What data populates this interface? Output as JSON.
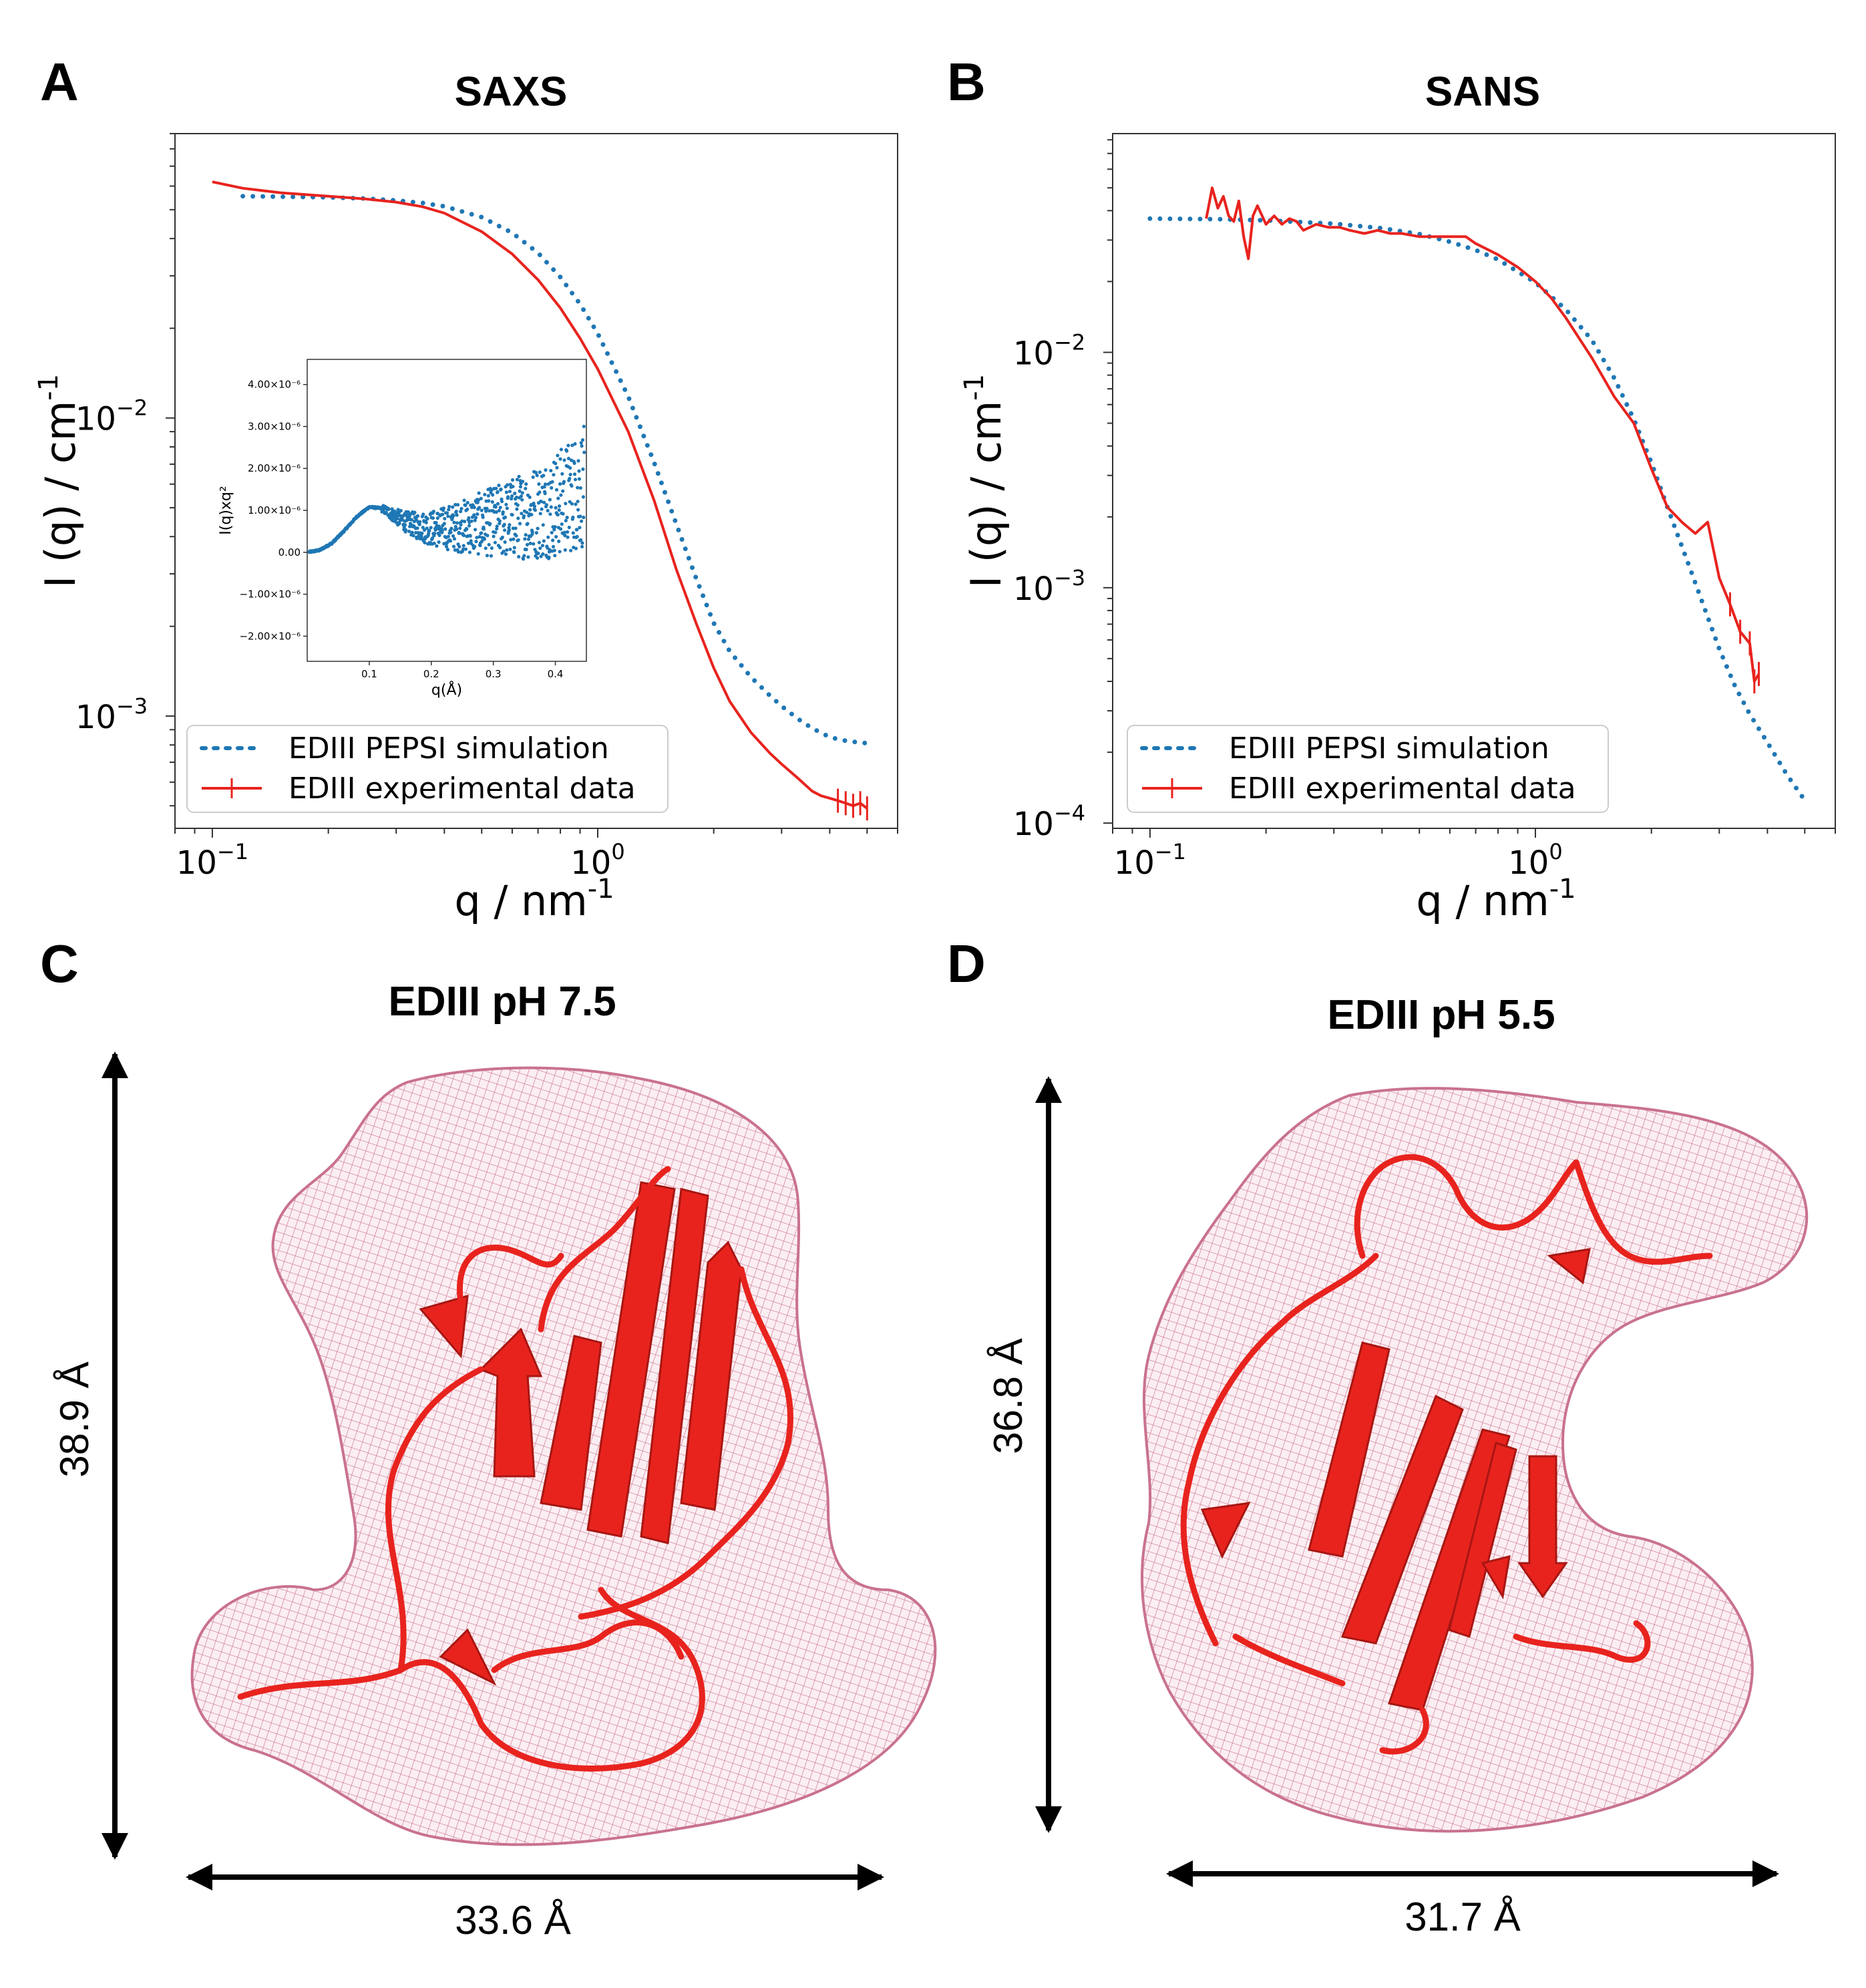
{
  "chart_data": [
    {
      "panel": "A",
      "type": "line",
      "title": "SAXS",
      "xlabel": "q / nm",
      "xlabel_sup": "-1",
      "ylabel": "I (q) / cm",
      "ylabel_sup": "-1",
      "xscale": "log",
      "yscale": "log",
      "xlim": [
        0.08,
        6.0
      ],
      "ylim": [
        0.00042,
        0.09
      ],
      "x_ticks": [
        {
          "base": "10",
          "exp": "−1",
          "value": 0.1
        },
        {
          "base": "10",
          "exp": "0",
          "value": 1.0
        }
      ],
      "y_ticks": [
        {
          "base": "10",
          "exp": "−3",
          "value": 0.001
        },
        {
          "base": "10",
          "exp": "−2",
          "value": 0.01
        }
      ],
      "legend_position": "bottom-left",
      "series": [
        {
          "name": "EDIII PEPSI simulation",
          "style": "dotted",
          "color": "#1f77b4",
          "x": [
            0.12,
            0.15,
            0.2,
            0.25,
            0.3,
            0.35,
            0.4,
            0.5,
            0.6,
            0.7,
            0.8,
            0.9,
            1.0,
            1.2,
            1.4,
            1.6,
            1.8,
            2.0,
            2.2,
            2.5,
            2.8,
            3.0,
            3.3,
            3.6,
            4.0,
            4.3,
            4.6,
            5.0
          ],
          "y": [
            0.0555,
            0.0553,
            0.055,
            0.0545,
            0.0537,
            0.0527,
            0.0513,
            0.0472,
            0.0418,
            0.0358,
            0.0297,
            0.0241,
            0.0192,
            0.0118,
            0.0071,
            0.0044,
            0.0029,
            0.00205,
            0.00165,
            0.00135,
            0.00117,
            0.00108,
            0.00098,
            0.00091,
            0.00085,
            0.00083,
            0.00082,
            0.00081
          ]
        },
        {
          "name": "EDIII experimental data",
          "style": "solid-errorbar",
          "color": "#e8231e",
          "x": [
            0.1,
            0.12,
            0.15,
            0.2,
            0.25,
            0.3,
            0.35,
            0.4,
            0.5,
            0.6,
            0.7,
            0.8,
            0.9,
            1.0,
            1.2,
            1.4,
            1.6,
            1.8,
            2.0,
            2.2,
            2.5,
            2.8,
            3.0,
            3.3,
            3.6,
            3.8,
            4.0,
            4.2,
            4.4,
            4.6,
            4.8,
            5.0
          ],
          "y": [
            0.062,
            0.059,
            0.057,
            0.0555,
            0.0543,
            0.053,
            0.0512,
            0.0487,
            0.0422,
            0.0355,
            0.0291,
            0.0234,
            0.0185,
            0.0146,
            0.009,
            0.0053,
            0.0031,
            0.00205,
            0.00145,
            0.00112,
            0.00088,
            0.00075,
            0.00069,
            0.00062,
            0.00056,
            0.00054,
            0.00053,
            0.00052,
            0.00051,
            0.0005,
            0.00051,
            0.00049
          ]
        }
      ],
      "inset": {
        "type": "scatter",
        "xlabel": "q(Å)",
        "ylabel": "I(q)xq²",
        "xlim": [
          0.0,
          0.45
        ],
        "ylim": [
          -2.6e-06,
          4.6e-06
        ],
        "x_ticks": [
          "0.1",
          "0.2",
          "0.3",
          "0.4"
        ],
        "x_tick_values": [
          0.1,
          0.2,
          0.3,
          0.4
        ],
        "y_ticks": [
          "4.00×10⁻⁶",
          "3.00×10⁻⁶",
          "2.00×10⁻⁶",
          "1.00×10⁻⁶",
          "0.00",
          "−1.00×10⁻⁶",
          "−2.00×10⁻⁶"
        ],
        "y_tick_values": [
          4e-06,
          3e-06,
          2e-06,
          1e-06,
          0,
          -1e-06,
          -2e-06
        ],
        "color": "#1f77b4",
        "trend_q": [
          0.0,
          0.02,
          0.04,
          0.06,
          0.08,
          0.1,
          0.12,
          0.14,
          0.16,
          0.18,
          0.2,
          0.24,
          0.28,
          0.32,
          0.36,
          0.4,
          0.43,
          0.45
        ],
        "trend_y": [
          0.0,
          5e-08,
          2.2e-07,
          5.2e-07,
          8.5e-07,
          1.08e-06,
          1.05e-06,
          8.8e-07,
          7.2e-07,
          6.2e-07,
          5.7e-07,
          6e-07,
          6.8e-07,
          7.8e-07,
          9.2e-07,
          1.12e-06,
          1.4e-06,
          1.6e-06
        ]
      }
    },
    {
      "panel": "B",
      "type": "line",
      "title": "SANS",
      "xlabel": "q / nm",
      "xlabel_sup": "-1",
      "ylabel": "I (q) / cm",
      "ylabel_sup": "-1",
      "xscale": "log",
      "yscale": "log",
      "xlim": [
        0.08,
        6.0
      ],
      "ylim": [
        9.5e-05,
        0.085
      ],
      "x_ticks": [
        {
          "base": "10",
          "exp": "−1",
          "value": 0.1
        },
        {
          "base": "10",
          "exp": "0",
          "value": 1.0
        }
      ],
      "y_ticks": [
        {
          "base": "10",
          "exp": "−4",
          "value": 0.0001
        },
        {
          "base": "10",
          "exp": "−3",
          "value": 0.001
        },
        {
          "base": "10",
          "exp": "−2",
          "value": 0.01
        }
      ],
      "legend_position": "bottom-left",
      "series": [
        {
          "name": "EDIII PEPSI simulation",
          "style": "dotted",
          "color": "#1f77b4",
          "x": [
            0.1,
            0.15,
            0.2,
            0.3,
            0.4,
            0.5,
            0.6,
            0.7,
            0.8,
            1.0,
            1.2,
            1.4,
            1.6,
            1.8,
            2.0,
            2.2,
            2.5,
            2.8,
            3.0,
            3.3,
            3.6,
            4.0,
            4.5,
            5.0
          ],
          "y": [
            0.037,
            0.0368,
            0.0364,
            0.0352,
            0.0337,
            0.0318,
            0.0295,
            0.0272,
            0.0248,
            0.0198,
            0.0152,
            0.0113,
            0.0078,
            0.0052,
            0.0034,
            0.0022,
            0.00125,
            0.00075,
            0.00055,
            0.00038,
            0.00029,
            0.00022,
            0.00016,
            0.000125
          ]
        },
        {
          "name": "EDIII experimental data",
          "style": "solid-errorbar",
          "color": "#e8231e",
          "x": [
            0.14,
            0.145,
            0.15,
            0.155,
            0.16,
            0.165,
            0.17,
            0.175,
            0.18,
            0.185,
            0.19,
            0.2,
            0.21,
            0.22,
            0.23,
            0.24,
            0.25,
            0.27,
            0.29,
            0.31,
            0.33,
            0.36,
            0.39,
            0.42,
            0.45,
            0.5,
            0.55,
            0.6,
            0.66,
            0.7,
            0.8,
            0.9,
            1.0,
            1.1,
            1.2,
            1.4,
            1.6,
            1.8,
            2.0,
            2.2,
            2.4,
            2.6,
            2.8,
            3.0,
            3.2,
            3.4,
            3.6,
            3.7,
            3.8
          ],
          "y": [
            0.037,
            0.05,
            0.041,
            0.046,
            0.038,
            0.036,
            0.044,
            0.031,
            0.025,
            0.038,
            0.042,
            0.035,
            0.038,
            0.035,
            0.037,
            0.036,
            0.033,
            0.035,
            0.034,
            0.034,
            0.033,
            0.032,
            0.033,
            0.032,
            0.032,
            0.031,
            0.031,
            0.031,
            0.031,
            0.029,
            0.026,
            0.023,
            0.02,
            0.017,
            0.014,
            0.0095,
            0.0065,
            0.005,
            0.0032,
            0.0022,
            0.0019,
            0.0017,
            0.0019,
            0.0011,
            0.00085,
            0.00065,
            0.00058,
            0.0004,
            0.00043
          ]
        }
      ]
    }
  ],
  "models": [
    {
      "panel": "C",
      "title": "EDIII pH 7.5",
      "height_label": "38.9 Å",
      "width_label": "33.6 Å",
      "envelope_color": "#d17f98",
      "ribbon_color": "#e8231e"
    },
    {
      "panel": "D",
      "title": "EDIII pH 5.5",
      "height_label": "36.8 Å",
      "width_label": "31.7 Å",
      "envelope_color": "#d17f98",
      "ribbon_color": "#e8231e"
    }
  ]
}
